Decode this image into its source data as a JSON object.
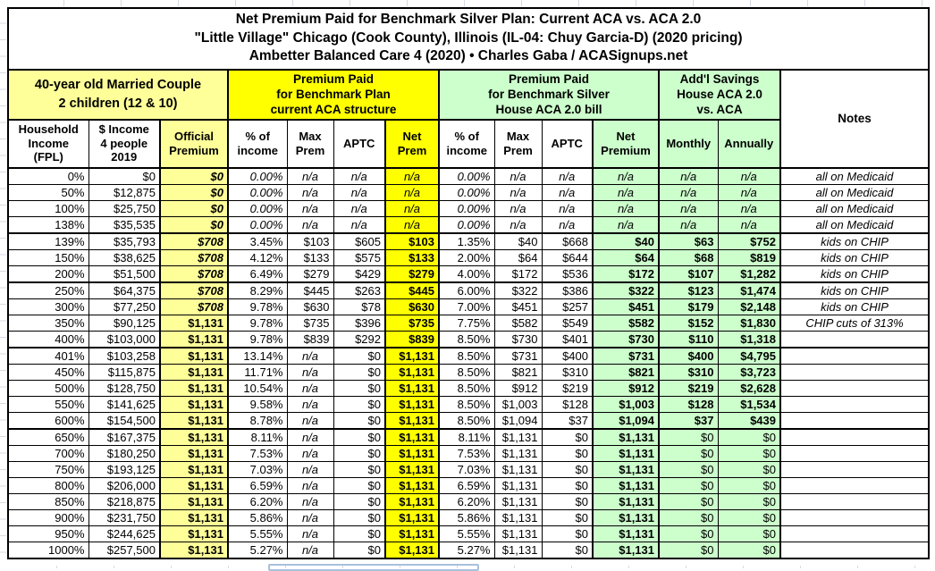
{
  "title": {
    "line1": "Net Premium Paid for Benchmark Silver Plan: Current ACA vs. ACA 2.0",
    "line2": "\"Little Village\" Chicago (Cook County), Illinois (IL-04: Chuy Garcia-D) (2020 pricing)",
    "line3": "Ambetter Balanced Care 4 (2020) • Charles Gaba / ACASignups.net"
  },
  "sections": {
    "household": "40-year old Married Couple\n2 children (12 & 10)",
    "aca": "Premium Paid\nfor Benchmark Plan\ncurrent ACA structure",
    "aca2": "Premium Paid\nfor Benchmark Silver\nHouse ACA 2.0 bill",
    "savings": "Add'l Savings\nHouse ACA 2.0\nvs. ACA",
    "notes": "Notes"
  },
  "columns": [
    {
      "key": "fpl",
      "label": "Household\nIncome\n(FPL)"
    },
    {
      "key": "income",
      "label": "$ Income\n4 people\n2019"
    },
    {
      "key": "official",
      "label": "Official\nPremium"
    },
    {
      "key": "aca-pct",
      "label": "% of\nincome"
    },
    {
      "key": "aca-max",
      "label": "Max\nPrem"
    },
    {
      "key": "aca-aptc",
      "label": "APTC"
    },
    {
      "key": "aca-net",
      "label": "Net\nPrem"
    },
    {
      "key": "h-pct",
      "label": "% of\nincome"
    },
    {
      "key": "h-max",
      "label": "Max\nPrem"
    },
    {
      "key": "h-aptc",
      "label": "APTC"
    },
    {
      "key": "h-net",
      "label": "Net\nPremium"
    },
    {
      "key": "monthly",
      "label": "Monthly"
    },
    {
      "key": "annually",
      "label": "Annually"
    },
    {
      "key": "notes",
      "label": "Notes"
    }
  ],
  "rows": [
    [
      "0%",
      "$0",
      "$0",
      "0.00%",
      "n/a",
      "n/a",
      "n/a",
      "0.00%",
      "n/a",
      "n/a",
      "n/a",
      "n/a",
      "n/a",
      "all on Medicaid"
    ],
    [
      "50%",
      "$12,875",
      "$0",
      "0.00%",
      "n/a",
      "n/a",
      "n/a",
      "0.00%",
      "n/a",
      "n/a",
      "n/a",
      "n/a",
      "n/a",
      "all on Medicaid"
    ],
    [
      "100%",
      "$25,750",
      "$0",
      "0.00%",
      "n/a",
      "n/a",
      "n/a",
      "0.00%",
      "n/a",
      "n/a",
      "n/a",
      "n/a",
      "n/a",
      "all on Medicaid"
    ],
    [
      "138%",
      "$35,535",
      "$0",
      "0.00%",
      "n/a",
      "n/a",
      "n/a",
      "0.00%",
      "n/a",
      "n/a",
      "n/a",
      "n/a",
      "n/a",
      "all on Medicaid"
    ],
    [
      "139%",
      "$35,793",
      "$708",
      "3.45%",
      "$103",
      "$605",
      "$103",
      "1.35%",
      "$40",
      "$668",
      "$40",
      "$63",
      "$752",
      "kids on CHIP"
    ],
    [
      "150%",
      "$38,625",
      "$708",
      "4.12%",
      "$133",
      "$575",
      "$133",
      "2.00%",
      "$64",
      "$644",
      "$64",
      "$68",
      "$819",
      "kids on CHIP"
    ],
    [
      "200%",
      "$51,500",
      "$708",
      "6.49%",
      "$279",
      "$429",
      "$279",
      "4.00%",
      "$172",
      "$536",
      "$172",
      "$107",
      "$1,282",
      "kids on CHIP"
    ],
    [
      "250%",
      "$64,375",
      "$708",
      "8.29%",
      "$445",
      "$263",
      "$445",
      "6.00%",
      "$322",
      "$386",
      "$322",
      "$123",
      "$1,474",
      "kids on CHIP"
    ],
    [
      "300%",
      "$77,250",
      "$708",
      "9.78%",
      "$630",
      "$78",
      "$630",
      "7.00%",
      "$451",
      "$257",
      "$451",
      "$179",
      "$2,148",
      "kids on CHIP"
    ],
    [
      "350%",
      "$90,125",
      "$1,131",
      "9.78%",
      "$735",
      "$396",
      "$735",
      "7.75%",
      "$582",
      "$549",
      "$582",
      "$152",
      "$1,830",
      "CHIP cuts of 313%"
    ],
    [
      "400%",
      "$103,000",
      "$1,131",
      "9.78%",
      "$839",
      "$292",
      "$839",
      "8.50%",
      "$730",
      "$401",
      "$730",
      "$110",
      "$1,318",
      ""
    ],
    [
      "401%",
      "$103,258",
      "$1,131",
      "13.14%",
      "n/a",
      "$0",
      "$1,131",
      "8.50%",
      "$731",
      "$400",
      "$731",
      "$400",
      "$4,795",
      ""
    ],
    [
      "450%",
      "$115,875",
      "$1,131",
      "11.71%",
      "n/a",
      "$0",
      "$1,131",
      "8.50%",
      "$821",
      "$310",
      "$821",
      "$310",
      "$3,723",
      ""
    ],
    [
      "500%",
      "$128,750",
      "$1,131",
      "10.54%",
      "n/a",
      "$0",
      "$1,131",
      "8.50%",
      "$912",
      "$219",
      "$912",
      "$219",
      "$2,628",
      ""
    ],
    [
      "550%",
      "$141,625",
      "$1,131",
      "9.58%",
      "n/a",
      "$0",
      "$1,131",
      "8.50%",
      "$1,003",
      "$128",
      "$1,003",
      "$128",
      "$1,534",
      ""
    ],
    [
      "600%",
      "$154,500",
      "$1,131",
      "8.78%",
      "n/a",
      "$0",
      "$1,131",
      "8.50%",
      "$1,094",
      "$37",
      "$1,094",
      "$37",
      "$439",
      ""
    ],
    [
      "650%",
      "$167,375",
      "$1,131",
      "8.11%",
      "n/a",
      "$0",
      "$1,131",
      "8.11%",
      "$1,131",
      "$0",
      "$1,131",
      "$0",
      "$0",
      ""
    ],
    [
      "700%",
      "$180,250",
      "$1,131",
      "7.53%",
      "n/a",
      "$0",
      "$1,131",
      "7.53%",
      "$1,131",
      "$0",
      "$1,131",
      "$0",
      "$0",
      ""
    ],
    [
      "750%",
      "$193,125",
      "$1,131",
      "7.03%",
      "n/a",
      "$0",
      "$1,131",
      "7.03%",
      "$1,131",
      "$0",
      "$1,131",
      "$0",
      "$0",
      ""
    ],
    [
      "800%",
      "$206,000",
      "$1,131",
      "6.59%",
      "n/a",
      "$0",
      "$1,131",
      "6.59%",
      "$1,131",
      "$0",
      "$1,131",
      "$0",
      "$0",
      ""
    ],
    [
      "850%",
      "$218,875",
      "$1,131",
      "6.20%",
      "n/a",
      "$0",
      "$1,131",
      "6.20%",
      "$1,131",
      "$0",
      "$1,131",
      "$0",
      "$0",
      ""
    ],
    [
      "900%",
      "$231,750",
      "$1,131",
      "5.86%",
      "n/a",
      "$0",
      "$1,131",
      "5.86%",
      "$1,131",
      "$0",
      "$1,131",
      "$0",
      "$0",
      ""
    ],
    [
      "950%",
      "$244,625",
      "$1,131",
      "5.55%",
      "n/a",
      "$0",
      "$1,131",
      "5.55%",
      "$1,131",
      "$0",
      "$1,131",
      "$0",
      "$0",
      ""
    ],
    [
      "1000%",
      "$257,500",
      "$1,131",
      "5.27%",
      "n/a",
      "$0",
      "$1,131",
      "5.27%",
      "$1,131",
      "$0",
      "$1,131",
      "$0",
      "$0",
      ""
    ]
  ],
  "group_breaks_after": [
    "138%",
    "200%",
    "400%",
    "600%"
  ],
  "colors": {
    "bright_yellow": "#ffff00",
    "light_yellow": "#ffff99",
    "light_green": "#ccffcc",
    "border": "#000000",
    "outside_gridline": "#d6dbe4",
    "selection_outline": "#a8c0dc"
  }
}
